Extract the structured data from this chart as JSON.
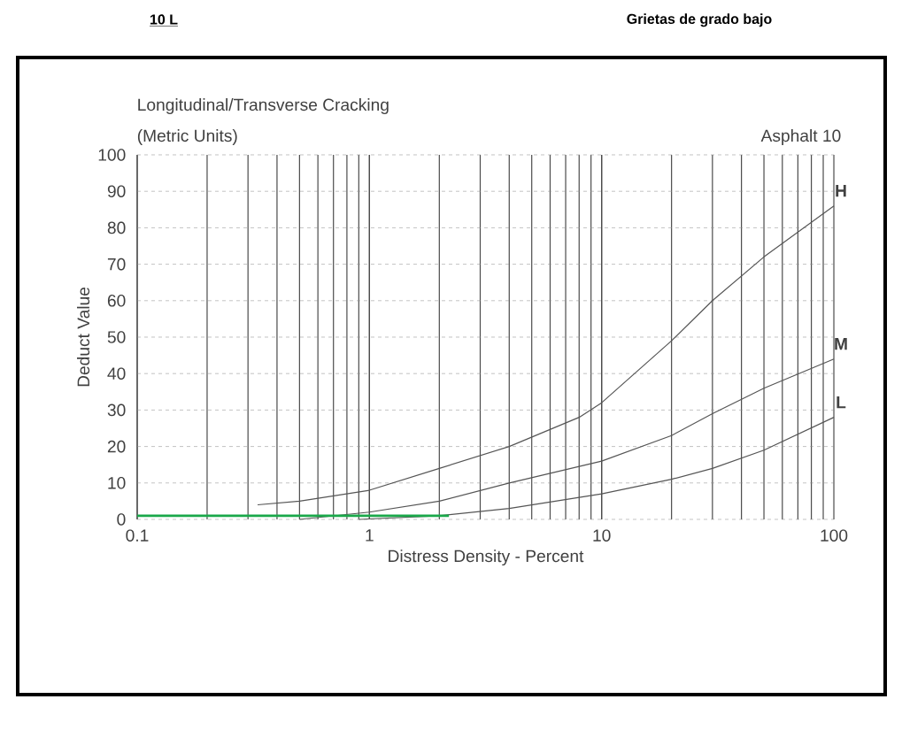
{
  "chart_data": {
    "type": "line",
    "title": "Longitudinal/Transverse Cracking",
    "subtitle": "(Metric Units)",
    "xlabel": "Distress Density - Percent",
    "ylabel": "Deduct Value",
    "annotations": [
      "Asphalt 10",
      "10 L",
      "Grietas de grado bajo"
    ],
    "log": "x",
    "xlim": [
      0.1,
      100
    ],
    "ylim": [
      0,
      100
    ],
    "xticks": [
      0.1,
      1,
      10,
      100
    ],
    "yticks": [
      0,
      10,
      20,
      30,
      40,
      50,
      60,
      70,
      80,
      90,
      100
    ],
    "grid": true,
    "series": [
      {
        "name": "H",
        "color": "#555555",
        "x": [
          0.33,
          0.5,
          1,
          2,
          4,
          8,
          10,
          20,
          30,
          50,
          100
        ],
        "values": [
          4,
          5,
          8,
          14,
          20,
          28,
          32,
          49,
          60,
          72,
          86
        ]
      },
      {
        "name": "M",
        "color": "#555555",
        "x": [
          0.5,
          1,
          2,
          4,
          10,
          20,
          30,
          50,
          100
        ],
        "values": [
          0,
          2,
          5,
          10,
          16,
          23,
          29,
          36,
          44
        ]
      },
      {
        "name": "L",
        "color": "#555555",
        "x": [
          0.9,
          2,
          4,
          10,
          20,
          30,
          50,
          100
        ],
        "values": [
          0,
          1,
          3,
          7,
          11,
          14,
          19,
          28
        ]
      },
      {
        "color": "#1aa84a",
        "x": [
          0.1,
          2.2
        ],
        "values": [
          1,
          1
        ]
      }
    ]
  }
}
